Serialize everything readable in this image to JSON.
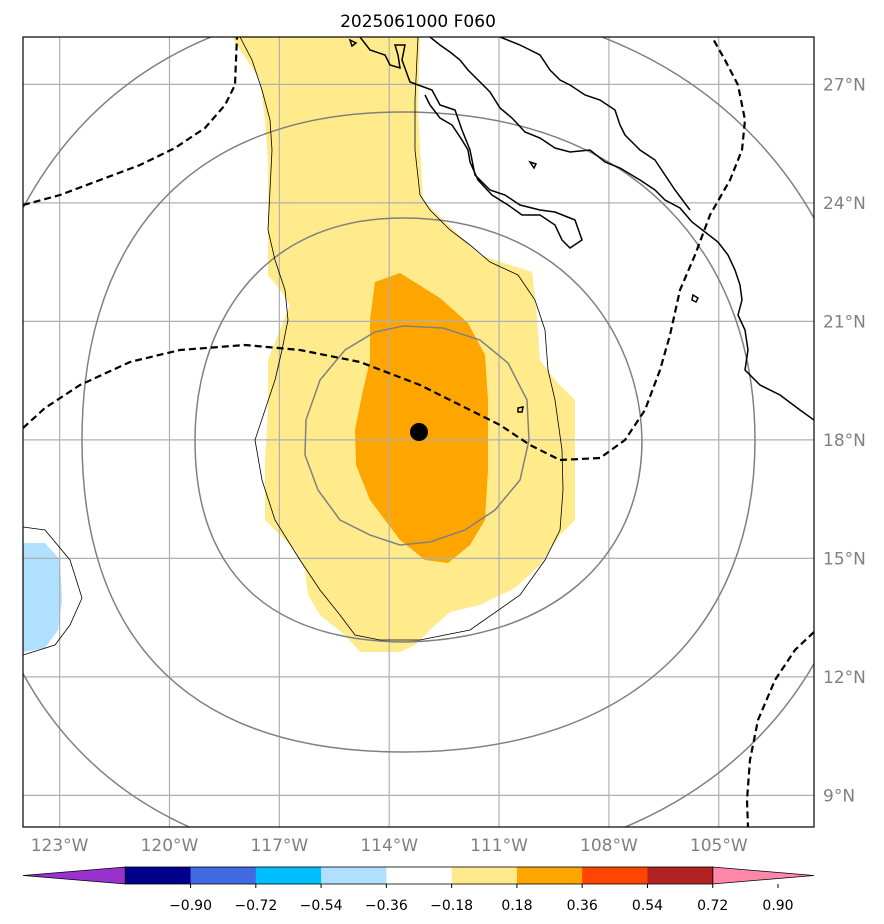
{
  "title": "2025061000 F060",
  "center_marker": {
    "lat": 18.2,
    "lon": -113.6
  },
  "map": {
    "lon_range": [
      -124,
      -102.4
    ],
    "lat_range": [
      8.2,
      28.2
    ],
    "lat_ticks": [
      {
        "value": 27,
        "label": "27°N"
      },
      {
        "value": 24,
        "label": "24°N"
      },
      {
        "value": 21,
        "label": "21°N"
      },
      {
        "value": 18,
        "label": "18°N"
      },
      {
        "value": 15,
        "label": "15°N"
      },
      {
        "value": 12,
        "label": "12°N"
      },
      {
        "value": 9,
        "label": "9°N"
      }
    ],
    "lon_ticks": [
      {
        "value": -123,
        "label": "123°W"
      },
      {
        "value": -120,
        "label": "120°W"
      },
      {
        "value": -117,
        "label": "117°W"
      },
      {
        "value": -114,
        "label": "114°W"
      },
      {
        "value": -111,
        "label": "111°W"
      },
      {
        "value": -108,
        "label": "108°W"
      },
      {
        "value": -105,
        "label": "105°W"
      }
    ],
    "grid_color": "#b0b0b0",
    "ring_color": "#808080",
    "coast_color": "#000000"
  },
  "colorbar": {
    "colors": [
      "#9932cc",
      "#00008b",
      "#4169e1",
      "#00bfff",
      "#b0e0ff",
      "#ffffff",
      "#ffeb8c",
      "#ffa500",
      "#ff4500",
      "#b22222",
      "#ff88aa"
    ],
    "tick_labels": [
      "−0.90",
      "−0.72",
      "−0.54",
      "−0.36",
      "−0.18",
      "0.18",
      "0.36",
      "0.54",
      "0.72",
      "0.90"
    ],
    "extend": "both"
  },
  "fill_colors": {
    "light_yellow": "#ffeb8c",
    "orange": "#ffa500",
    "light_blue": "#b0e0ff"
  }
}
